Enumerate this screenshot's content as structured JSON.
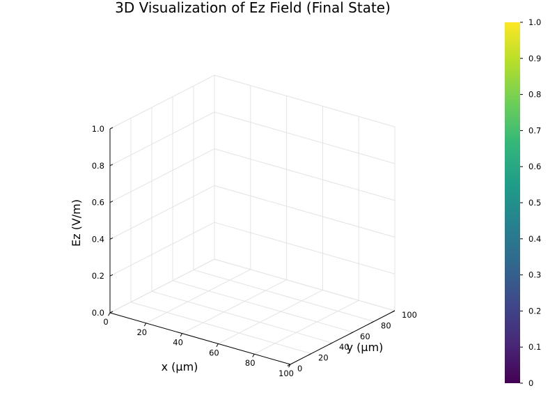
{
  "chart_data": {
    "type": "surface",
    "title": "3D Visualization of Ez Field (Final State)",
    "xlabel": "x (µm)",
    "ylabel": "y (µm)",
    "zlabel": "Ez (V/m)",
    "x_ticks": [
      "0",
      "20",
      "40",
      "60",
      "80",
      "100"
    ],
    "y_ticks": [
      "0",
      "20",
      "40",
      "60",
      "80",
      "100"
    ],
    "z_ticks": [
      "0.0",
      "0.2",
      "0.4",
      "0.6",
      "0.8",
      "1.0"
    ],
    "xlim": [
      0,
      100
    ],
    "ylim": [
      0,
      100
    ],
    "zlim": [
      0,
      1
    ],
    "grid": true,
    "series": [],
    "colorbar": {
      "colormap": "viridis",
      "range": [
        0,
        1
      ],
      "ticks": [
        "0",
        "0.1",
        "0.2",
        "0.3",
        "0.4",
        "0.5",
        "0.6",
        "0.7",
        "0.8",
        "0.9",
        "1.0"
      ],
      "colors": [
        "#440154",
        "#482878",
        "#3e4989",
        "#31688e",
        "#26828e",
        "#1f9e89",
        "#35b779",
        "#6ece58",
        "#b5de2b",
        "#fde725"
      ]
    }
  }
}
